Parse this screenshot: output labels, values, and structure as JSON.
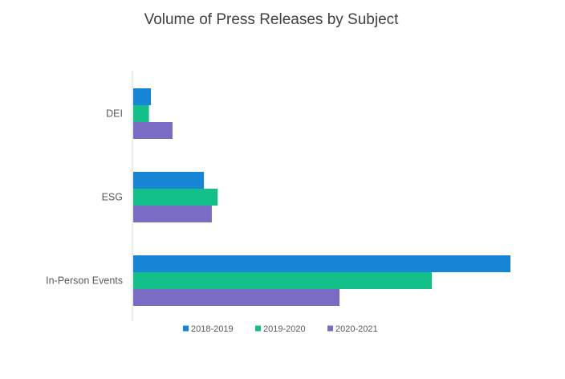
{
  "chart_data": {
    "type": "bar",
    "orientation": "horizontal",
    "title": "Volume of Press Releases by Subject",
    "categories": [
      "DEI",
      "ESG",
      "In-Person Events"
    ],
    "series": [
      {
        "name": "2018-2019",
        "color": "#1785d6",
        "values": [
          4.5,
          18,
          96
        ]
      },
      {
        "name": "2019-2020",
        "color": "#14c08a",
        "values": [
          4,
          21.5,
          76
        ]
      },
      {
        "name": "2020-2021",
        "color": "#7a6bc4",
        "values": [
          10,
          20,
          52.5
        ]
      }
    ],
    "xlim": [
      0,
      96
    ],
    "legend_position": "bottom",
    "grid": false
  }
}
